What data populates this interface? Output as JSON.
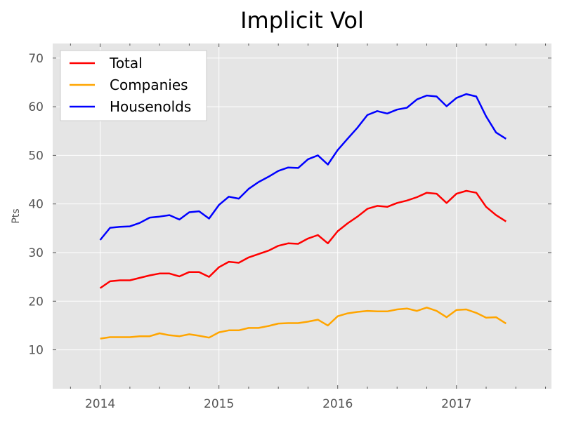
{
  "chart_data": {
    "type": "line",
    "title": "Implicit Vol",
    "xlabel": "",
    "ylabel": "Pts",
    "xlim": [
      2013.6,
      2017.8
    ],
    "ylim": [
      2,
      73
    ],
    "x_ticks": [
      "2014",
      "2015",
      "2016",
      "2017"
    ],
    "y_ticks": [
      "10",
      "20",
      "30",
      "40",
      "50",
      "60",
      "70"
    ],
    "grid": true,
    "legend_position": "top-left",
    "x": [
      2014.0,
      2014.083,
      2014.167,
      2014.25,
      2014.333,
      2014.417,
      2014.5,
      2014.583,
      2014.667,
      2014.75,
      2014.833,
      2014.917,
      2015.0,
      2015.083,
      2015.167,
      2015.25,
      2015.333,
      2015.417,
      2015.5,
      2015.583,
      2015.667,
      2015.75,
      2015.833,
      2015.917,
      2016.0,
      2016.083,
      2016.167,
      2016.25,
      2016.333,
      2016.417,
      2016.5,
      2016.583,
      2016.667,
      2016.75,
      2016.833,
      2016.917,
      2017.0,
      2017.083,
      2017.167,
      2017.25,
      2017.333,
      2017.417
    ],
    "series": [
      {
        "name": "Total",
        "color": "#ff0000",
        "values": [
          22.7,
          24.1,
          24.3,
          24.3,
          24.8,
          25.3,
          25.7,
          25.7,
          25.1,
          26.0,
          26.0,
          25.0,
          27.0,
          28.1,
          27.9,
          29.0,
          29.7,
          30.4,
          31.4,
          31.9,
          31.8,
          32.9,
          33.6,
          31.9,
          34.4,
          36.0,
          37.4,
          39.0,
          39.6,
          39.4,
          40.2,
          40.7,
          41.4,
          42.3,
          42.1,
          40.2,
          42.1,
          42.7,
          42.3,
          39.4,
          37.7,
          36.4
        ]
      },
      {
        "name": "Companies",
        "color": "#ffa500",
        "values": [
          12.3,
          12.6,
          12.6,
          12.6,
          12.8,
          12.8,
          13.4,
          13.0,
          12.8,
          13.2,
          12.9,
          12.5,
          13.6,
          14.0,
          14.0,
          14.5,
          14.5,
          14.9,
          15.4,
          15.5,
          15.5,
          15.8,
          16.2,
          15.0,
          16.9,
          17.5,
          17.8,
          18.0,
          17.9,
          17.9,
          18.3,
          18.5,
          18.0,
          18.7,
          18.0,
          16.7,
          18.2,
          18.3,
          17.6,
          16.6,
          16.7,
          15.4
        ]
      },
      {
        "name": "Housenolds",
        "color": "#0000ff",
        "values": [
          32.6,
          35.1,
          35.3,
          35.4,
          36.1,
          37.2,
          37.4,
          37.7,
          36.8,
          38.3,
          38.5,
          37.0,
          39.8,
          41.5,
          41.1,
          43.1,
          44.5,
          45.6,
          46.8,
          47.5,
          47.4,
          49.2,
          50.0,
          48.1,
          51.1,
          53.4,
          55.7,
          58.3,
          59.1,
          58.6,
          59.4,
          59.8,
          61.5,
          62.3,
          62.1,
          60.1,
          61.8,
          62.6,
          62.1,
          58.0,
          54.7,
          53.4
        ]
      }
    ]
  }
}
